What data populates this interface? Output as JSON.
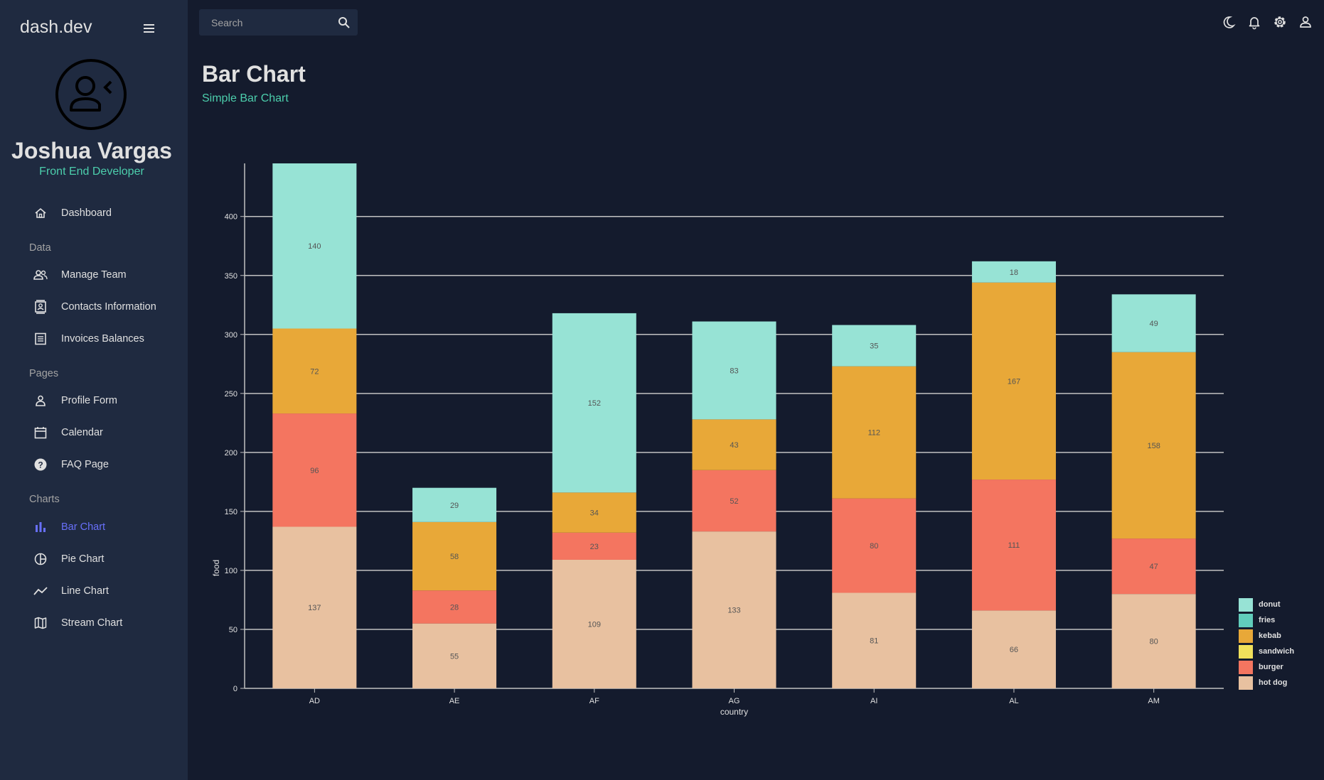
{
  "sidebar": {
    "brand": "dash.dev",
    "user_name": "Joshua Vargas",
    "user_role": "Front End Developer",
    "dashboard": "Dashboard",
    "section_data": "Data",
    "manage_team": "Manage Team",
    "contacts": "Contacts Information",
    "invoices": "Invoices Balances",
    "section_pages": "Pages",
    "profile_form": "Profile Form",
    "calendar": "Calendar",
    "faq": "FAQ Page",
    "section_charts": "Charts",
    "bar_chart": "Bar Chart",
    "pie_chart": "Pie Chart",
    "line_chart": "Line Chart",
    "stream_chart": "Stream Chart",
    "active_item": "Bar Chart"
  },
  "topbar": {
    "search_placeholder": "Search",
    "icons": [
      "moon-icon",
      "bell-icon",
      "gear-icon",
      "person-icon"
    ]
  },
  "header": {
    "title": "Bar Chart",
    "subtitle": "Simple Bar Chart"
  },
  "colors": {
    "background": "#141b2d",
    "sidebar": "#1f2a40",
    "accent_green": "#4cceac",
    "accent_blue": "#6870fa"
  },
  "chart_data": {
    "type": "bar",
    "stacked": true,
    "categories": [
      "AD",
      "AE",
      "AF",
      "AG",
      "AI",
      "AL",
      "AM"
    ],
    "series": [
      {
        "name": "hot dog",
        "color": "#e8c1a0",
        "values": [
          137,
          55,
          109,
          133,
          81,
          66,
          80
        ]
      },
      {
        "name": "burger",
        "color": "#f47560",
        "values": [
          96,
          28,
          23,
          52,
          80,
          111,
          47
        ]
      },
      {
        "name": "sandwich",
        "color": "#f1e15b",
        "values": [
          0,
          0,
          0,
          0,
          0,
          0,
          0
        ]
      },
      {
        "name": "kebab",
        "color": "#e8a838",
        "values": [
          72,
          58,
          34,
          43,
          112,
          167,
          158
        ]
      },
      {
        "name": "fries",
        "color": "#61cdbb",
        "values": [
          0,
          0,
          0,
          0,
          0,
          0,
          0
        ]
      },
      {
        "name": "donut",
        "color": "#97e3d5",
        "values": [
          140,
          29,
          152,
          83,
          35,
          18,
          49
        ]
      }
    ],
    "legend_order": [
      "donut",
      "fries",
      "kebab",
      "sandwich",
      "burger",
      "hot dog"
    ],
    "xlabel": "country",
    "ylabel": "food",
    "ylim": [
      0,
      445
    ],
    "yticks": [
      0,
      50,
      100,
      150,
      200,
      250,
      300,
      350,
      400
    ],
    "grid": true,
    "legend_position": "bottom-right"
  }
}
